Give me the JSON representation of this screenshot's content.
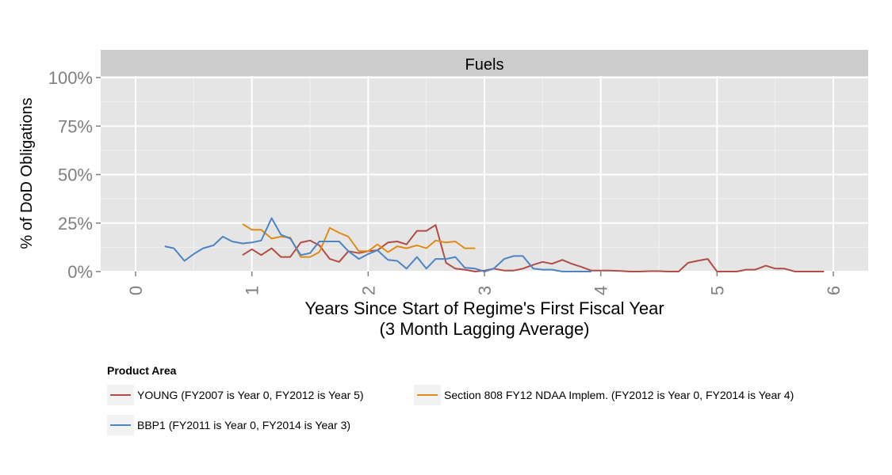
{
  "chart_data": {
    "type": "line",
    "facet_title": "Fuels",
    "xlabel": "Years Since Start of Regime's First Fiscal Year\n(3 Month Lagging Average)",
    "ylabel": "% of DoD Obligations",
    "xlim": [
      -0.3,
      6.3
    ],
    "ylim": [
      0,
      1
    ],
    "x_ticks": [
      "0",
      "1",
      "2",
      "3",
      "4",
      "5",
      "6"
    ],
    "y_ticks": [
      "0%",
      "25%",
      "50%",
      "75%",
      "100%"
    ],
    "grid": true,
    "legend": {
      "title": "Product Area",
      "position": "bottom"
    },
    "series": [
      {
        "name": "YOUNG (FY2007 is Year 0, FY2012 is Year 5)",
        "color": "#b24c45",
        "x": [
          0.92,
          1.0,
          1.08,
          1.17,
          1.25,
          1.33,
          1.42,
          1.5,
          1.58,
          1.67,
          1.75,
          1.83,
          1.92,
          2.0,
          2.08,
          2.17,
          2.25,
          2.33,
          2.42,
          2.5,
          2.58,
          2.67,
          2.75,
          2.83,
          2.92,
          3.0,
          3.08,
          3.17,
          3.25,
          3.33,
          3.42,
          3.5,
          3.58,
          3.67,
          3.75,
          3.83,
          3.92,
          4.0,
          4.08,
          4.17,
          4.25,
          4.33,
          4.42,
          4.5,
          4.58,
          4.67,
          4.75,
          4.83,
          4.92,
          5.0,
          5.08,
          5.17,
          5.25,
          5.33,
          5.42,
          5.5,
          5.58,
          5.67,
          5.75,
          5.83,
          5.92
        ],
        "y": [
          0.085,
          0.115,
          0.085,
          0.12,
          0.075,
          0.075,
          0.15,
          0.16,
          0.135,
          0.065,
          0.05,
          0.105,
          0.095,
          0.105,
          0.11,
          0.15,
          0.155,
          0.14,
          0.21,
          0.21,
          0.24,
          0.045,
          0.015,
          0.01,
          0.0,
          0.005,
          0.015,
          0.005,
          0.005,
          0.015,
          0.035,
          0.05,
          0.04,
          0.06,
          0.04,
          0.025,
          0.005,
          0.005,
          0.005,
          0.003,
          0.0,
          0.0,
          0.002,
          0.002,
          0.0,
          0.0,
          0.045,
          0.055,
          0.065,
          0.0,
          0.0,
          0.0,
          0.01,
          0.01,
          0.03,
          0.015,
          0.015,
          0.0,
          0.0,
          0.0,
          0.0
        ]
      },
      {
        "name": "Section 808 FY12 NDAA Implem. (FY2012 is Year 0, FY2014 is Year 4)",
        "color": "#e08b16",
        "x": [
          0.92,
          1.0,
          1.08,
          1.17,
          1.25,
          1.33,
          1.42,
          1.5,
          1.58,
          1.67,
          1.75,
          1.83,
          1.92,
          2.0,
          2.08,
          2.17,
          2.25,
          2.33,
          2.42,
          2.5,
          2.58,
          2.67,
          2.75,
          2.83,
          2.92
        ],
        "y": [
          0.245,
          0.215,
          0.215,
          0.17,
          0.18,
          0.175,
          0.075,
          0.075,
          0.1,
          0.225,
          0.2,
          0.18,
          0.105,
          0.105,
          0.14,
          0.1,
          0.13,
          0.12,
          0.135,
          0.12,
          0.16,
          0.15,
          0.155,
          0.12,
          0.12
        ]
      },
      {
        "name": "BBP1 (FY2011 is Year 0, FY2014 is Year 3)",
        "color": "#4c84c4",
        "x": [
          0.25,
          0.33,
          0.42,
          0.5,
          0.58,
          0.67,
          0.75,
          0.83,
          0.92,
          1.0,
          1.08,
          1.17,
          1.25,
          1.33,
          1.42,
          1.5,
          1.58,
          1.67,
          1.75,
          1.83,
          1.92,
          2.0,
          2.08,
          2.17,
          2.25,
          2.33,
          2.42,
          2.5,
          2.58,
          2.67,
          2.75,
          2.83,
          2.92,
          3.0,
          3.08,
          3.17,
          3.25,
          3.33,
          3.42,
          3.5,
          3.58,
          3.67,
          3.75,
          3.83,
          3.92
        ],
        "y": [
          0.13,
          0.12,
          0.055,
          0.09,
          0.12,
          0.135,
          0.18,
          0.155,
          0.145,
          0.15,
          0.16,
          0.275,
          0.19,
          0.17,
          0.085,
          0.095,
          0.155,
          0.155,
          0.155,
          0.105,
          0.065,
          0.09,
          0.11,
          0.06,
          0.055,
          0.015,
          0.075,
          0.015,
          0.065,
          0.065,
          0.075,
          0.02,
          0.015,
          0.0,
          0.015,
          0.065,
          0.08,
          0.08,
          0.015,
          0.01,
          0.01,
          0.0,
          0.0,
          0.0,
          0.0
        ]
      }
    ]
  }
}
